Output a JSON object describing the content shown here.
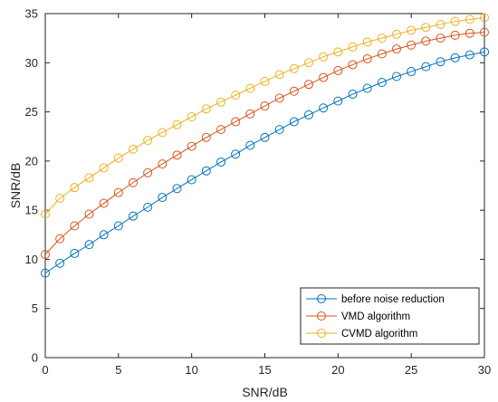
{
  "chart_data": {
    "type": "line",
    "title": "",
    "xlabel": "SNR/dB",
    "ylabel": "SNR/dB",
    "xlim": [
      0,
      30
    ],
    "ylim": [
      0,
      35
    ],
    "xticks": [
      0,
      5,
      10,
      15,
      20,
      25,
      30
    ],
    "yticks": [
      0,
      5,
      10,
      15,
      20,
      25,
      30,
      35
    ],
    "grid": false,
    "legend_position": "bottom-right",
    "x": [
      0,
      1,
      2,
      3,
      4,
      5,
      6,
      7,
      8,
      9,
      10,
      11,
      12,
      13,
      14,
      15,
      16,
      17,
      18,
      19,
      20,
      21,
      22,
      23,
      24,
      25,
      26,
      27,
      28,
      29,
      30
    ],
    "series": [
      {
        "name": "before noise reduction",
        "color": "#0072BD",
        "values": [
          8.6,
          9.6,
          10.6,
          11.5,
          12.5,
          13.4,
          14.4,
          15.3,
          16.3,
          17.2,
          18.1,
          19.0,
          19.9,
          20.7,
          21.6,
          22.4,
          23.2,
          24.0,
          24.7,
          25.4,
          26.1,
          26.8,
          27.4,
          28.0,
          28.6,
          29.1,
          29.6,
          30.1,
          30.5,
          30.8,
          31.1
        ]
      },
      {
        "name": "VMD algorithm",
        "color": "#D95319",
        "values": [
          10.5,
          12.1,
          13.4,
          14.6,
          15.7,
          16.8,
          17.8,
          18.8,
          19.7,
          20.6,
          21.5,
          22.4,
          23.2,
          24.0,
          24.8,
          25.6,
          26.4,
          27.1,
          27.8,
          28.5,
          29.2,
          29.8,
          30.4,
          30.9,
          31.4,
          31.8,
          32.2,
          32.5,
          32.8,
          33.0,
          33.1
        ]
      },
      {
        "name": "CVMD algorithm",
        "color": "#EDB120",
        "values": [
          14.6,
          16.2,
          17.3,
          18.3,
          19.3,
          20.3,
          21.2,
          22.1,
          22.9,
          23.7,
          24.5,
          25.3,
          26.0,
          26.7,
          27.4,
          28.1,
          28.8,
          29.4,
          30.0,
          30.6,
          31.1,
          31.6,
          32.1,
          32.5,
          32.9,
          33.3,
          33.6,
          33.9,
          34.2,
          34.4,
          34.6
        ]
      }
    ]
  }
}
